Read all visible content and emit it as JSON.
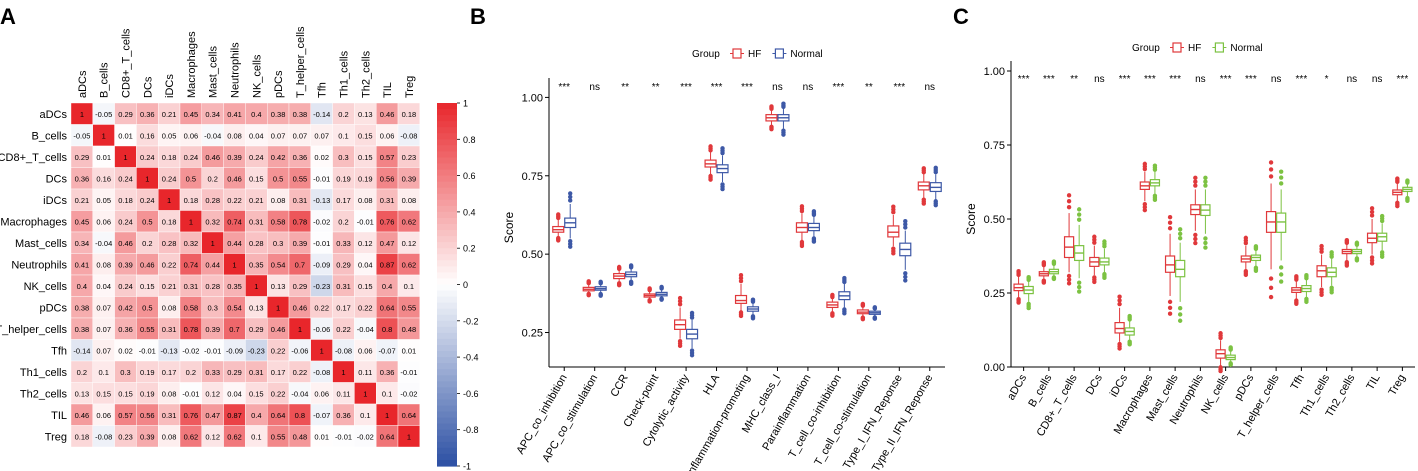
{
  "panel_labels": [
    "A",
    "B",
    "C"
  ],
  "chart_data": [
    {
      "type": "heatmap",
      "panel": "A",
      "labels": [
        "aDCs",
        "B_cells",
        "CD8+_T_cells",
        "DCs",
        "iDCs",
        "Macrophages",
        "Mast_cells",
        "Neutrophils",
        "NK_cells",
        "pDCs",
        "T_helper_cells",
        "Tfh",
        "Th1_cells",
        "Th2_cells",
        "TIL",
        "Treg"
      ],
      "matrix": [
        [
          1,
          -0.05,
          0.29,
          0.36,
          0.21,
          0.45,
          0.34,
          0.41,
          0.4,
          0.38,
          0.38,
          -0.14,
          0.2,
          0.13,
          0.46,
          0.18
        ],
        [
          -0.05,
          1,
          0.01,
          0.16,
          0.05,
          0.06,
          -0.04,
          0.08,
          0.04,
          0.07,
          0.07,
          0.07,
          0.1,
          0.15,
          0.06,
          -0.08
        ],
        [
          0.29,
          0.01,
          1,
          0.24,
          0.18,
          0.24,
          0.46,
          0.39,
          0.24,
          0.42,
          0.36,
          0.02,
          0.3,
          0.15,
          0.57,
          0.23
        ],
        [
          0.36,
          0.16,
          0.24,
          1,
          0.24,
          0.5,
          0.2,
          0.46,
          0.15,
          0.5,
          0.55,
          -0.01,
          0.19,
          0.19,
          0.56,
          0.39
        ],
        [
          0.21,
          0.05,
          0.18,
          0.24,
          1,
          0.18,
          0.28,
          0.22,
          0.21,
          0.08,
          0.31,
          -0.13,
          0.17,
          0.08,
          0.31,
          0.08
        ],
        [
          0.45,
          0.06,
          0.24,
          0.5,
          0.18,
          1,
          0.32,
          0.74,
          0.31,
          0.58,
          0.78,
          -0.02,
          0.2,
          -0.01,
          0.76,
          0.62
        ],
        [
          0.34,
          -0.04,
          0.46,
          0.2,
          0.28,
          0.32,
          1,
          0.44,
          0.28,
          0.3,
          0.39,
          -0.01,
          0.33,
          0.12,
          0.47,
          0.12
        ],
        [
          0.41,
          0.08,
          0.39,
          0.46,
          0.22,
          0.74,
          0.44,
          1,
          0.35,
          0.54,
          0.7,
          -0.09,
          0.29,
          0.04,
          0.87,
          0.62
        ],
        [
          0.4,
          0.04,
          0.24,
          0.15,
          0.21,
          0.31,
          0.28,
          0.35,
          1,
          0.13,
          0.29,
          -0.23,
          0.31,
          0.15,
          0.4,
          0.1
        ],
        [
          0.38,
          0.07,
          0.42,
          0.5,
          0.08,
          0.58,
          0.3,
          0.54,
          0.13,
          1,
          0.46,
          0.22,
          0.17,
          0.22,
          0.64,
          0.55
        ],
        [
          0.38,
          0.07,
          0.36,
          0.55,
          0.31,
          0.78,
          0.39,
          0.7,
          0.29,
          0.46,
          1,
          -0.06,
          0.22,
          -0.04,
          0.8,
          0.48
        ],
        [
          -0.14,
          0.07,
          0.02,
          -0.01,
          -0.13,
          -0.02,
          -0.01,
          -0.09,
          -0.23,
          0.22,
          -0.06,
          1,
          -0.08,
          0.06,
          -0.07,
          0.01
        ],
        [
          0.2,
          0.1,
          0.3,
          0.19,
          0.17,
          0.2,
          0.33,
          0.29,
          0.31,
          0.17,
          0.22,
          -0.08,
          1,
          0.11,
          0.36,
          -0.01
        ],
        [
          0.13,
          0.15,
          0.15,
          0.19,
          0.08,
          -0.01,
          0.12,
          0.04,
          0.15,
          0.22,
          -0.04,
          0.06,
          0.11,
          1,
          0.1,
          -0.02
        ],
        [
          0.46,
          0.06,
          0.57,
          0.56,
          0.31,
          0.76,
          0.47,
          0.87,
          0.4,
          0.64,
          0.8,
          -0.07,
          0.36,
          0.1,
          1,
          0.64
        ],
        [
          0.18,
          -0.08,
          0.23,
          0.39,
          0.08,
          0.62,
          0.12,
          0.62,
          0.1,
          0.55,
          0.48,
          0.01,
          -0.01,
          -0.02,
          0.64,
          1
        ]
      ],
      "color_range": [
        -1,
        1
      ],
      "colorbar_ticks": [
        "1",
        "0.8",
        "0.6",
        "0.4",
        "0.2",
        "0",
        "-0.2",
        "-0.4",
        "-0.6",
        "-0.8",
        "-1"
      ],
      "colors": {
        "positive": "#e8262b",
        "negative": "#2b4fa3",
        "neutral": "#ffffff"
      }
    },
    {
      "type": "box",
      "panel": "B",
      "ylabel": "Score",
      "ylim": [
        0.14,
        1.03
      ],
      "yticks": [
        "0.25",
        "0.50",
        "0.75",
        "1.00"
      ],
      "legend_title": "Group",
      "groups": [
        {
          "name": "HF",
          "color": "#e0383b"
        },
        {
          "name": "Normal",
          "color": "#3d58a6"
        }
      ],
      "categories": [
        "APC_co_inhibition",
        "APC_co_stimulation",
        "CCR",
        "Check-point",
        "Cytolytic_activity",
        "HLA",
        "Inflammation-promoting",
        "MHC_class_I",
        "Parainflammation",
        "T_cell_co-inhibition",
        "T_cell_co-stimulation",
        "Type_I_IFN_Reponse",
        "Type_II_IFN_Reponse"
      ],
      "significance": [
        "***",
        "ns",
        "**",
        "**",
        "***",
        "***",
        "***",
        "ns",
        "ns",
        "***",
        "**",
        "***",
        "ns"
      ],
      "series": [
        {
          "name": "HF",
          "stats": [
            [
              0.555,
              0.57,
              0.578,
              0.588,
              0.61
            ],
            [
              0.375,
              0.383,
              0.388,
              0.394,
              0.405
            ],
            [
              0.41,
              0.422,
              0.43,
              0.438,
              0.45
            ],
            [
              0.355,
              0.363,
              0.368,
              0.373,
              0.383
            ],
            [
              0.23,
              0.26,
              0.275,
              0.29,
              0.33
            ],
            [
              0.755,
              0.778,
              0.788,
              0.8,
              0.825
            ],
            [
              0.32,
              0.343,
              0.352,
              0.368,
              0.405
            ],
            [
              0.91,
              0.925,
              0.935,
              0.945,
              0.96
            ],
            [
              0.545,
              0.57,
              0.585,
              0.6,
              0.63
            ],
            [
              0.315,
              0.33,
              0.338,
              0.347,
              0.36
            ],
            [
              0.3,
              0.31,
              0.315,
              0.322,
              0.333
            ],
            [
              0.525,
              0.555,
              0.57,
              0.59,
              0.625
            ],
            [
              0.68,
              0.705,
              0.718,
              0.73,
              0.755
            ]
          ]
        },
        {
          "name": "Normal",
          "stats": [
            [
              0.55,
              0.585,
              0.6,
              0.615,
              0.66
            ],
            [
              0.375,
              0.385,
              0.39,
              0.396,
              0.405
            ],
            [
              0.415,
              0.428,
              0.435,
              0.443,
              0.455
            ],
            [
              0.36,
              0.367,
              0.372,
              0.378,
              0.388
            ],
            [
              0.2,
              0.23,
              0.245,
              0.26,
              0.29
            ],
            [
              0.73,
              0.76,
              0.773,
              0.785,
              0.815
            ],
            [
              0.305,
              0.318,
              0.325,
              0.332,
              0.345
            ],
            [
              0.9,
              0.925,
              0.935,
              0.945,
              0.965
            ],
            [
              0.555,
              0.575,
              0.585,
              0.598,
              0.62
            ],
            [
              0.33,
              0.355,
              0.367,
              0.38,
              0.405
            ],
            [
              0.3,
              0.308,
              0.313,
              0.318,
              0.325
            ],
            [
              0.45,
              0.495,
              0.515,
              0.535,
              0.575
            ],
            [
              0.675,
              0.7,
              0.713,
              0.728,
              0.755
            ]
          ]
        }
      ]
    },
    {
      "type": "box",
      "panel": "C",
      "ylabel": "Score",
      "ylim": [
        0,
        1
      ],
      "yticks": [
        "0.00",
        "0.25",
        "0.50",
        "0.75",
        "1.00"
      ],
      "legend_title": "Group",
      "groups": [
        {
          "name": "HF",
          "color": "#e0383b"
        },
        {
          "name": "Normal",
          "color": "#7cc242"
        }
      ],
      "categories": [
        "aDCs",
        "B_cells",
        "CD8+_T_cells",
        "DCs",
        "iDCs",
        "Macrophages",
        "Mast_cells",
        "Neutrophils",
        "NK_cells",
        "pDCs",
        "T_helper_cells",
        "Tfh",
        "Th1_cells",
        "Th2_cells",
        "TIL",
        "Treg"
      ],
      "significance": [
        "***",
        "***",
        "**",
        "ns",
        "***",
        "***",
        "***",
        "ns",
        "***",
        "***",
        "ns",
        "***",
        "*",
        "ns",
        "ns",
        "***"
      ],
      "series": [
        {
          "name": "HF",
          "stats": [
            [
              0.235,
              0.258,
              0.268,
              0.28,
              0.305
            ],
            [
              0.295,
              0.308,
              0.315,
              0.322,
              0.34
            ],
            [
              0.32,
              0.37,
              0.405,
              0.44,
              0.52
            ],
            [
              0.31,
              0.34,
              0.355,
              0.37,
              0.41
            ],
            [
              0.085,
              0.115,
              0.13,
              0.15,
              0.2
            ],
            [
              0.56,
              0.6,
              0.612,
              0.625,
              0.66
            ],
            [
              0.24,
              0.32,
              0.345,
              0.375,
              0.45
            ],
            [
              0.46,
              0.515,
              0.532,
              0.548,
              0.6
            ],
            [
              0.005,
              0.03,
              0.045,
              0.058,
              0.09
            ],
            [
              0.33,
              0.355,
              0.365,
              0.375,
              0.41
            ],
            [
              0.33,
              0.455,
              0.49,
              0.525,
              0.62
            ],
            [
              0.23,
              0.252,
              0.26,
              0.268,
              0.29
            ],
            [
              0.27,
              0.305,
              0.325,
              0.342,
              0.38
            ],
            [
              0.36,
              0.383,
              0.39,
              0.397,
              0.415
            ],
            [
              0.38,
              0.42,
              0.435,
              0.452,
              0.5
            ],
            [
              0.56,
              0.582,
              0.59,
              0.598,
              0.62
            ]
          ]
        },
        {
          "name": "Normal",
          "stats": [
            [
              0.22,
              0.248,
              0.26,
              0.272,
              0.29
            ],
            [
              0.305,
              0.315,
              0.322,
              0.33,
              0.345
            ],
            [
              0.3,
              0.36,
              0.385,
              0.41,
              0.48
            ],
            [
              0.32,
              0.345,
              0.355,
              0.368,
              0.4
            ],
            [
              0.09,
              0.108,
              0.12,
              0.132,
              0.155
            ],
            [
              0.585,
              0.612,
              0.622,
              0.633,
              0.66
            ],
            [
              0.22,
              0.305,
              0.33,
              0.36,
              0.42
            ],
            [
              0.45,
              0.512,
              0.53,
              0.548,
              0.6
            ],
            [
              0.015,
              0.025,
              0.032,
              0.04,
              0.055
            ],
            [
              0.34,
              0.36,
              0.37,
              0.378,
              0.395
            ],
            [
              0.36,
              0.455,
              0.49,
              0.52,
              0.6
            ],
            [
              0.235,
              0.255,
              0.265,
              0.275,
              0.295
            ],
            [
              0.275,
              0.305,
              0.32,
              0.335,
              0.365
            ],
            [
              0.37,
              0.383,
              0.39,
              0.397,
              0.41
            ],
            [
              0.395,
              0.425,
              0.44,
              0.452,
              0.485
            ],
            [
              0.575,
              0.593,
              0.6,
              0.607,
              0.62
            ]
          ]
        }
      ]
    }
  ]
}
